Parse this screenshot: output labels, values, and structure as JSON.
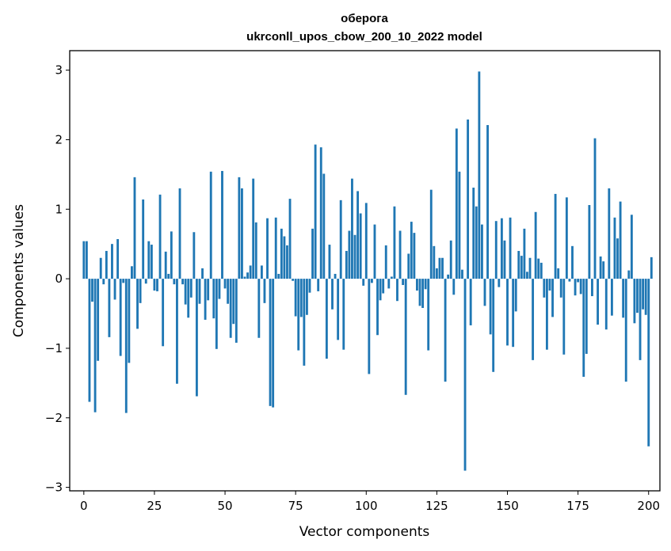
{
  "chart_data": {
    "type": "bar",
    "title_line1": "оберога",
    "title_line2": "ukrconll_upos_cbow_200_10_2022 model",
    "xlabel": "Vector components",
    "ylabel": "Components values",
    "xlim": [
      -5,
      204
    ],
    "ylim": [
      -3.05,
      3.28
    ],
    "x_ticks": [
      0,
      25,
      50,
      75,
      100,
      125,
      150,
      175,
      200
    ],
    "y_ticks": [
      -3,
      -2,
      -1,
      0,
      1,
      2,
      3
    ],
    "y_tick_labels": [
      "−3",
      "−2",
      "−1",
      "0",
      "1",
      "2",
      "3"
    ],
    "bar_color": "#1f77b4",
    "values": [
      0.54,
      0.54,
      -1.77,
      -0.33,
      -1.92,
      -1.18,
      0.3,
      -0.08,
      0.4,
      -0.84,
      0.5,
      -0.3,
      0.57,
      -1.11,
      -0.06,
      -1.93,
      -1.21,
      0.18,
      1.46,
      -0.72,
      -0.35,
      1.14,
      -0.07,
      0.54,
      0.49,
      -0.17,
      -0.18,
      1.21,
      -0.97,
      0.39,
      0.07,
      0.68,
      -0.08,
      -1.51,
      1.3,
      -0.08,
      -0.37,
      -0.56,
      -0.27,
      0.67,
      -1.69,
      -0.36,
      0.15,
      -0.59,
      -0.31,
      1.54,
      -0.57,
      -1.01,
      -0.29,
      1.55,
      -0.14,
      -0.36,
      -0.85,
      -0.65,
      -0.92,
      1.46,
      1.3,
      0.03,
      0.09,
      0.19,
      1.44,
      0.81,
      -0.85,
      0.19,
      -0.35,
      0.87,
      -1.83,
      -1.85,
      0.88,
      0.07,
      0.72,
      0.61,
      0.48,
      1.15,
      -0.03,
      -0.54,
      -1.03,
      -0.55,
      -1.25,
      -0.52,
      -0.2,
      0.72,
      1.93,
      -0.18,
      1.89,
      1.51,
      -1.15,
      0.49,
      -0.44,
      0.07,
      -0.88,
      1.13,
      -1.02,
      0.4,
      0.69,
      1.44,
      0.63,
      1.26,
      0.94,
      -0.1,
      1.09,
      -1.37,
      -0.06,
      0.78,
      -0.81,
      -0.31,
      -0.21,
      0.48,
      -0.14,
      0.03,
      1.04,
      -0.32,
      0.69,
      -0.09,
      -1.67,
      0.36,
      0.82,
      0.66,
      -0.17,
      -0.39,
      -0.42,
      -0.15,
      -1.03,
      1.28,
      0.47,
      0.15,
      0.3,
      0.3,
      -1.48,
      0.06,
      0.55,
      -0.23,
      2.16,
      1.54,
      0.13,
      -2.76,
      2.29,
      -0.67,
      1.31,
      1.04,
      2.98,
      0.78,
      -0.39,
      2.21,
      -0.8,
      -1.34,
      0.83,
      -0.12,
      0.87,
      0.55,
      -0.96,
      0.88,
      -0.98,
      -0.47,
      0.4,
      0.33,
      0.72,
      0.1,
      0.3,
      -1.17,
      0.96,
      0.29,
      0.23,
      -0.27,
      -1.02,
      -0.17,
      -0.55,
      1.22,
      0.15,
      -0.27,
      -1.09,
      1.17,
      -0.04,
      0.47,
      -0.24,
      -0.05,
      -0.22,
      -1.41,
      -1.08,
      1.06,
      -0.25,
      2.02,
      -0.66,
      0.32,
      0.25,
      -0.73,
      1.3,
      -0.53,
      0.88,
      0.58,
      1.11,
      -0.56,
      -1.48,
      0.12,
      0.92,
      -0.64,
      -0.49,
      -1.17,
      -0.44,
      -0.52,
      -2.41,
      0.31
    ]
  }
}
